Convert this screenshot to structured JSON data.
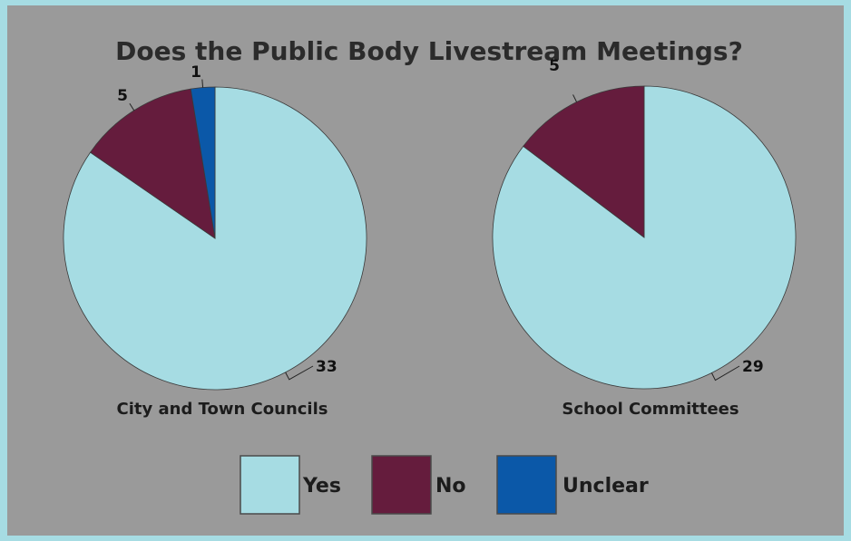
{
  "chart_data": {
    "type": "pie",
    "title": "Does the Public Body Livestream Meetings?",
    "legend": {
      "placement": "bottom",
      "entries": [
        {
          "label": "Yes",
          "color": "#a6dce3"
        },
        {
          "label": "No",
          "color": "#651c3d"
        },
        {
          "label": "Unclear",
          "color": "#0b58a8"
        }
      ]
    },
    "charts": [
      {
        "label": "City and Town Councils",
        "slices": [
          {
            "category": "Yes",
            "value": 33
          },
          {
            "category": "No",
            "value": 5
          },
          {
            "category": "Unclear",
            "value": 1
          }
        ]
      },
      {
        "label": "School Committees",
        "slices": [
          {
            "category": "Yes",
            "value": 29
          },
          {
            "category": "No",
            "value": 5
          }
        ]
      }
    ]
  }
}
